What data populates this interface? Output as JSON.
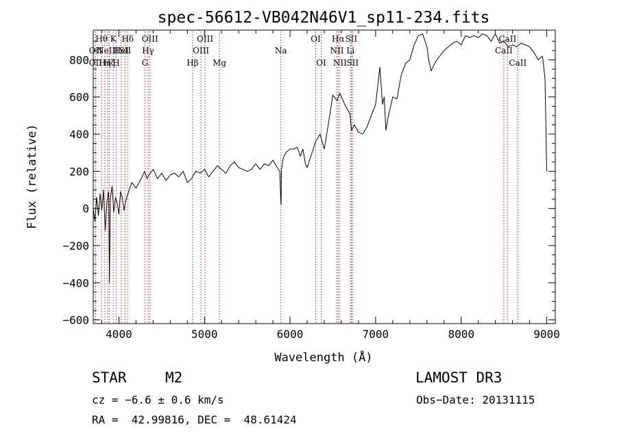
{
  "chart_data": {
    "type": "line",
    "title": "spec-56612-VB042N46V1_sp11-234.fits",
    "xlabel": "Wavelength (Å)",
    "ylabel": "Flux (relative)",
    "xlim": [
      3700,
      9100
    ],
    "ylim": [
      -620,
      960
    ],
    "xticks": [
      4000,
      5000,
      6000,
      7000,
      8000,
      9000
    ],
    "xtick_labels": [
      "4000",
      "5000",
      "6000",
      "7000",
      "8000",
      "9000"
    ],
    "yticks": [
      -600,
      -400,
      -200,
      0,
      200,
      400,
      600,
      800
    ],
    "ytick_labels": [
      "−600",
      "−400",
      "−200",
      "0",
      "200",
      "400",
      "600",
      "800"
    ],
    "grid": false,
    "series": [
      {
        "name": "flux",
        "x": [
          3700,
          3720,
          3740,
          3760,
          3780,
          3800,
          3820,
          3840,
          3860,
          3880,
          3890,
          3900,
          3920,
          3940,
          3960,
          3980,
          4000,
          4020,
          4040,
          4060,
          4080,
          4100,
          4150,
          4200,
          4250,
          4300,
          4330,
          4350,
          4400,
          4450,
          4500,
          4550,
          4600,
          4650,
          4700,
          4750,
          4800,
          4850,
          4870,
          4900,
          4950,
          5000,
          5050,
          5100,
          5150,
          5200,
          5250,
          5300,
          5350,
          5400,
          5450,
          5500,
          5550,
          5600,
          5650,
          5700,
          5750,
          5800,
          5850,
          5880,
          5890,
          5895,
          5900,
          5920,
          5950,
          6000,
          6050,
          6080,
          6100,
          6120,
          6150,
          6180,
          6200,
          6250,
          6300,
          6350,
          6400,
          6450,
          6500,
          6550,
          6580,
          6600,
          6650,
          6700,
          6720,
          6750,
          6800,
          6850,
          6900,
          6950,
          7000,
          7050,
          7080,
          7100,
          7120,
          7150,
          7200,
          7250,
          7300,
          7350,
          7400,
          7450,
          7500,
          7550,
          7600,
          7620,
          7650,
          7700,
          7750,
          7800,
          7850,
          7900,
          7950,
          8000,
          8050,
          8100,
          8150,
          8200,
          8250,
          8300,
          8350,
          8400,
          8450,
          8500,
          8550,
          8600,
          8650,
          8700,
          8750,
          8800,
          8850,
          8900,
          8950,
          8980,
          9000
        ],
        "values": [
          0,
          -70,
          60,
          -40,
          80,
          -10,
          100,
          -120,
          40,
          90,
          -400,
          50,
          120,
          -20,
          60,
          30,
          -30,
          90,
          60,
          -10,
          40,
          70,
          140,
          110,
          150,
          200,
          160,
          180,
          210,
          160,
          190,
          150,
          180,
          190,
          170,
          200,
          140,
          160,
          180,
          200,
          190,
          210,
          170,
          200,
          230,
          210,
          190,
          230,
          250,
          220,
          210,
          200,
          210,
          240,
          210,
          240,
          230,
          260,
          220,
          200,
          70,
          20,
          210,
          270,
          300,
          320,
          320,
          330,
          310,
          280,
          320,
          240,
          220,
          290,
          360,
          400,
          320,
          460,
          610,
          580,
          620,
          600,
          550,
          510,
          420,
          450,
          410,
          400,
          440,
          500,
          560,
          760,
          560,
          600,
          420,
          500,
          600,
          590,
          720,
          780,
          800,
          880,
          930,
          940,
          870,
          800,
          740,
          790,
          820,
          850,
          870,
          890,
          900,
          880,
          930,
          920,
          930,
          920,
          940,
          930,
          900,
          940,
          890,
          900,
          870,
          880,
          870,
          890,
          880,
          870,
          840,
          800,
          820,
          700,
          200
        ]
      }
    ],
    "line_markers": [
      {
        "wave": 3727,
        "label": "OII",
        "row": 2
      },
      {
        "wave": 3727,
        "label": "OII",
        "row": 3
      },
      {
        "wave": 3798,
        "label": "Hθ",
        "row": 1
      },
      {
        "wave": 3835,
        "label": "Hη",
        "row": 3
      },
      {
        "wave": 3869,
        "label": "NeIII",
        "row": 2
      },
      {
        "wave": 3889,
        "label": "Hζ",
        "row": 3
      },
      {
        "wave": 3934,
        "label": "K",
        "row": 1
      },
      {
        "wave": 3968,
        "label": "H",
        "row": 3
      },
      {
        "wave": 4026,
        "label": "HeI",
        "row": 2
      },
      {
        "wave": 4072,
        "label": "SII",
        "row": 2
      },
      {
        "wave": 4102,
        "label": "Hδ",
        "row": 1
      },
      {
        "wave": 4305,
        "label": "G",
        "row": 3
      },
      {
        "wave": 4341,
        "label": "Hγ",
        "row": 2
      },
      {
        "wave": 4363,
        "label": "OIII",
        "row": 1
      },
      {
        "wave": 4861,
        "label": "Hβ",
        "row": 3
      },
      {
        "wave": 4959,
        "label": "OIII",
        "row": 2
      },
      {
        "wave": 5007,
        "label": "OIII",
        "row": 1
      },
      {
        "wave": 5175,
        "label": "Mg",
        "row": 3
      },
      {
        "wave": 5893,
        "label": "Na",
        "row": 2
      },
      {
        "wave": 6300,
        "label": "OI",
        "row": 1
      },
      {
        "wave": 6364,
        "label": "OI",
        "row": 3
      },
      {
        "wave": 6548,
        "label": "NII",
        "row": 2
      },
      {
        "wave": 6563,
        "label": "Hα",
        "row": 1
      },
      {
        "wave": 6583,
        "label": "NII",
        "row": 3
      },
      {
        "wave": 6707,
        "label": "Li",
        "row": 2
      },
      {
        "wave": 6716,
        "label": "SII",
        "row": 1
      },
      {
        "wave": 6731,
        "label": "SII",
        "row": 3
      },
      {
        "wave": 8498,
        "label": "CaII",
        "row": 2
      },
      {
        "wave": 8542,
        "label": "CaII",
        "row": 1
      },
      {
        "wave": 8662,
        "label": "CaII",
        "row": 3
      }
    ]
  },
  "footer": {
    "object_class": "STAR",
    "subclass": "M2",
    "survey": "LAMOST DR3",
    "cz": "cz = −6.6 ± 0.6 km/s",
    "obs_date": "Obs−Date: 20131115",
    "coords": "RA =  42.99816, DEC =  48.61424"
  },
  "colors": {
    "background": "#ffffff",
    "foreground": "#000000",
    "line_marker": "#b22222"
  }
}
